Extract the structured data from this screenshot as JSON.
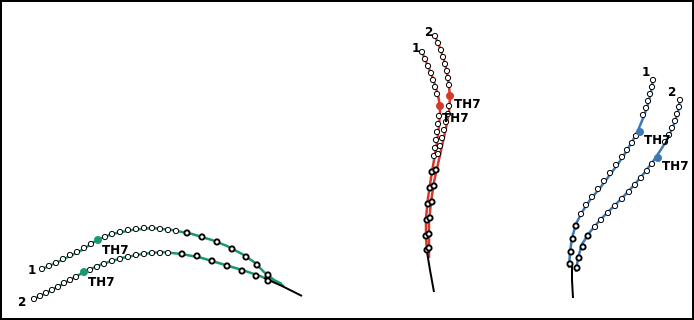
{
  "colors": {
    "background": "#ffffff",
    "border": "#000000",
    "nodeOutline": "#000000",
    "nodeFill": "#ffffff",
    "leftPanelLine": "#1a9a6c",
    "middlePanelLine": "#d23a2c",
    "rightPanelLine": "#3d78b5",
    "tail": "#000000"
  },
  "labels": {
    "track1": "1",
    "track2": "2",
    "marker": "TH7"
  }
}
